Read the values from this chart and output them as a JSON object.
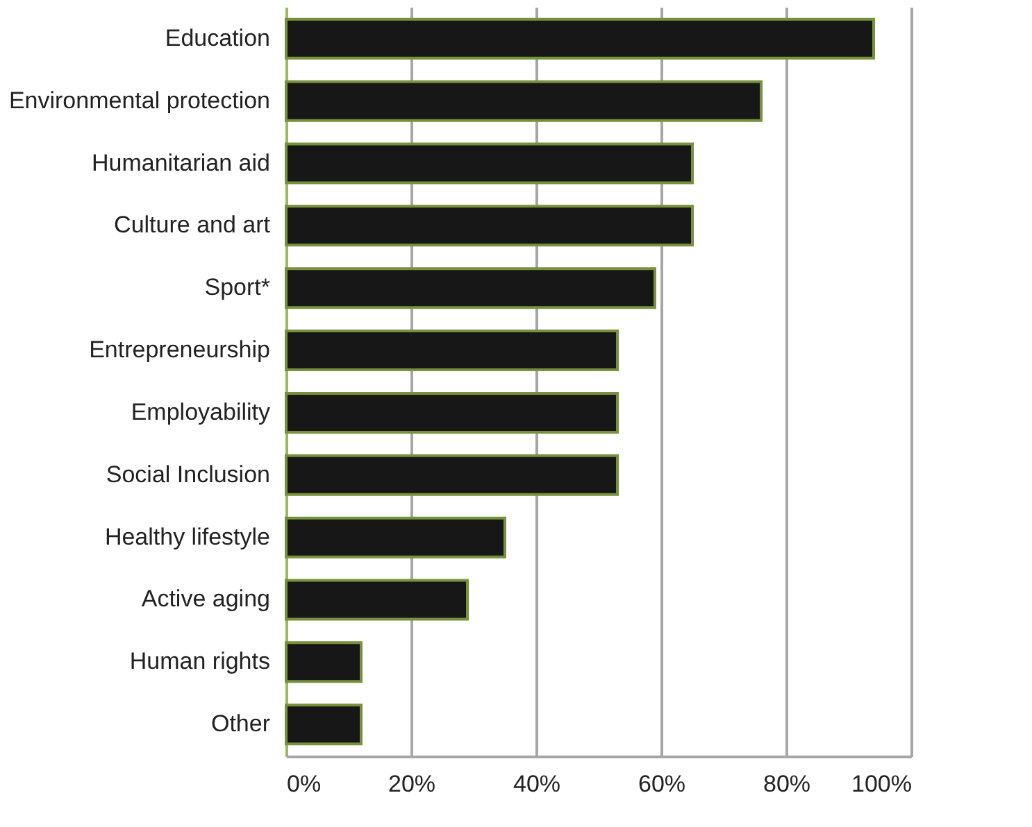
{
  "chart_data": {
    "type": "bar",
    "orientation": "horizontal",
    "categories": [
      "Education",
      "Environmental protection",
      "Humanitarian aid",
      "Culture and art",
      "Sport*",
      "Entrepreneurship",
      "Employability",
      "Social Inclusion",
      "Healthy lifestyle",
      "Active aging",
      "Human rights",
      "Other"
    ],
    "values": [
      94,
      76,
      65,
      65,
      59,
      53,
      53,
      53,
      35,
      29,
      12,
      12
    ],
    "color": "#171717",
    "xlim": [
      0,
      100
    ],
    "xticks": [
      {
        "value": 0,
        "label": "0%"
      },
      {
        "value": 20,
        "label": "20%"
      },
      {
        "value": 40,
        "label": "40%"
      },
      {
        "value": 60,
        "label": "60%"
      },
      {
        "value": 80,
        "label": "80%"
      },
      {
        "value": 100,
        "label": "100%"
      }
    ],
    "grid": "x"
  }
}
